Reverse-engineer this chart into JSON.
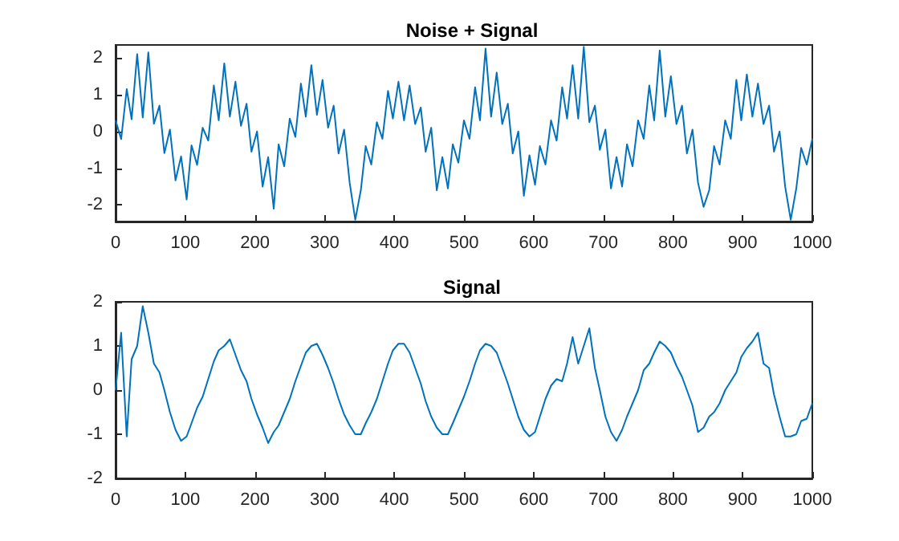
{
  "chart_data": [
    {
      "type": "line",
      "title": "Noise + Signal",
      "x": [
        0,
        8,
        16,
        23,
        31,
        39,
        47,
        55,
        63,
        70,
        78,
        86,
        94,
        102,
        109,
        117,
        125,
        133,
        141,
        148,
        156,
        164,
        172,
        180,
        188,
        195,
        203,
        211,
        219,
        227,
        234,
        242,
        250,
        258,
        266,
        273,
        281,
        289,
        297,
        305,
        313,
        320,
        328,
        336,
        344,
        352,
        359,
        367,
        375,
        383,
        391,
        398,
        406,
        414,
        422,
        430,
        438,
        445,
        453,
        461,
        469,
        477,
        484,
        492,
        500,
        508,
        516,
        523,
        531,
        539,
        547,
        555,
        563,
        570,
        578,
        586,
        594,
        602,
        609,
        617,
        625,
        633,
        641,
        648,
        656,
        664,
        672,
        680,
        688,
        695,
        703,
        711,
        719,
        727,
        734,
        742,
        750,
        758,
        766,
        773,
        781,
        789,
        797,
        805,
        813,
        820,
        828,
        836,
        844,
        852,
        859,
        867,
        875,
        883,
        891,
        898,
        906,
        914,
        922,
        930,
        938,
        945,
        953,
        961,
        969,
        977,
        984,
        992,
        1000
      ],
      "series": [
        {
          "color": "#0072bd",
          "values": [
            0.3,
            -0.21,
            1.15,
            0.33,
            2.1,
            0.38,
            2.15,
            0.21,
            0.7,
            -0.59,
            0.05,
            -1.33,
            -0.68,
            -1.85,
            -0.38,
            -0.91,
            0.1,
            -0.25,
            1.25,
            0.3,
            1.85,
            0.4,
            1.35,
            0.15,
            0.75,
            -0.55,
            0.0,
            -1.5,
            -0.7,
            -2.1,
            -0.35,
            -0.95,
            0.35,
            -0.15,
            1.3,
            0.4,
            1.8,
            0.45,
            1.4,
            0.1,
            0.7,
            -0.6,
            0.05,
            -1.4,
            -2.4,
            -1.6,
            -0.4,
            -0.9,
            0.25,
            -0.2,
            1.1,
            0.35,
            1.35,
            0.3,
            1.25,
            0.2,
            0.65,
            -0.55,
            0.1,
            -1.6,
            -0.7,
            -1.55,
            -0.35,
            -0.85,
            0.3,
            -0.2,
            1.2,
            0.3,
            2.25,
            0.4,
            1.6,
            0.2,
            0.75,
            -0.6,
            0.0,
            -1.75,
            -0.65,
            -1.45,
            -0.4,
            -0.9,
            0.3,
            -0.25,
            1.2,
            0.35,
            1.8,
            0.35,
            2.3,
            0.25,
            0.7,
            -0.5,
            0.05,
            -1.55,
            -0.7,
            -1.5,
            -0.35,
            -0.95,
            0.3,
            -0.2,
            1.25,
            0.3,
            2.2,
            0.4,
            1.5,
            0.2,
            0.7,
            -0.6,
            0.05,
            -1.4,
            -2.05,
            -1.6,
            -0.4,
            -0.9,
            0.3,
            -0.2,
            1.4,
            0.3,
            1.55,
            0.4,
            1.3,
            0.2,
            0.7,
            -0.55,
            0.0,
            -1.5,
            -2.4,
            -1.55,
            -0.45,
            -0.9,
            -0.2
          ]
        }
      ],
      "xlim": [
        0,
        1000
      ],
      "xticks": [
        0,
        100,
        200,
        300,
        400,
        500,
        600,
        700,
        800,
        900,
        1000
      ],
      "ylim": [
        -2.45,
        2.35
      ],
      "yticks": [
        -2,
        -1,
        0,
        1,
        2
      ],
      "grid": false,
      "marker": "none",
      "line_style": "solid"
    },
    {
      "type": "line",
      "title": "Signal",
      "x": [
        0,
        8,
        16,
        23,
        31,
        39,
        47,
        55,
        63,
        70,
        78,
        86,
        94,
        102,
        109,
        117,
        125,
        133,
        141,
        148,
        156,
        164,
        172,
        180,
        188,
        195,
        203,
        211,
        219,
        227,
        234,
        242,
        250,
        258,
        266,
        273,
        281,
        289,
        297,
        305,
        313,
        320,
        328,
        336,
        344,
        352,
        359,
        367,
        375,
        383,
        391,
        398,
        406,
        414,
        422,
        430,
        438,
        445,
        453,
        461,
        469,
        477,
        484,
        492,
        500,
        508,
        516,
        523,
        531,
        539,
        547,
        555,
        563,
        570,
        578,
        586,
        594,
        602,
        609,
        617,
        625,
        633,
        641,
        648,
        656,
        664,
        672,
        680,
        688,
        695,
        703,
        711,
        719,
        727,
        734,
        742,
        750,
        758,
        766,
        773,
        781,
        789,
        797,
        805,
        813,
        820,
        828,
        836,
        844,
        852,
        859,
        867,
        875,
        883,
        891,
        898,
        906,
        914,
        922,
        930,
        938,
        945,
        953,
        961,
        969,
        977,
        984,
        992,
        1000
      ],
      "series": [
        {
          "color": "#0072bd",
          "values": [
            0.0,
            1.3,
            -1.05,
            0.7,
            1.0,
            1.9,
            1.3,
            0.6,
            0.4,
            0.0,
            -0.5,
            -0.9,
            -1.15,
            -1.05,
            -0.75,
            -0.4,
            -0.15,
            0.25,
            0.65,
            0.9,
            1.0,
            1.15,
            0.8,
            0.45,
            0.2,
            -0.2,
            -0.55,
            -0.85,
            -1.2,
            -0.95,
            -0.8,
            -0.5,
            -0.2,
            0.2,
            0.55,
            0.85,
            1.0,
            1.05,
            0.8,
            0.5,
            0.15,
            -0.2,
            -0.55,
            -0.8,
            -1.0,
            -1.0,
            -0.75,
            -0.5,
            -0.2,
            0.2,
            0.6,
            0.9,
            1.05,
            1.05,
            0.85,
            0.5,
            0.15,
            -0.25,
            -0.6,
            -0.85,
            -1.0,
            -1.0,
            -0.75,
            -0.45,
            -0.15,
            0.2,
            0.6,
            0.9,
            1.05,
            1.0,
            0.85,
            0.5,
            0.15,
            -0.2,
            -0.6,
            -0.9,
            -1.05,
            -0.95,
            -0.6,
            -0.2,
            0.1,
            0.25,
            0.2,
            0.6,
            1.2,
            0.6,
            1.0,
            1.4,
            0.5,
            0.0,
            -0.6,
            -0.95,
            -1.15,
            -0.9,
            -0.6,
            -0.3,
            0.0,
            0.45,
            0.6,
            0.85,
            1.1,
            1.0,
            0.85,
            0.55,
            0.3,
            0.0,
            -0.35,
            -0.95,
            -0.85,
            -0.6,
            -0.5,
            -0.3,
            0.0,
            0.2,
            0.4,
            0.75,
            0.95,
            1.1,
            1.3,
            0.6,
            0.5,
            -0.1,
            -0.6,
            -1.05,
            -1.05,
            -1.0,
            -0.7,
            -0.65,
            -0.3
          ]
        }
      ],
      "xlim": [
        0,
        1000
      ],
      "xticks": [
        0,
        100,
        200,
        300,
        400,
        500,
        600,
        700,
        800,
        900,
        1000
      ],
      "ylim": [
        -2,
        2
      ],
      "yticks": [
        -2,
        -1,
        0,
        1,
        2
      ],
      "grid": false,
      "marker": "none",
      "line_style": "solid"
    }
  ]
}
